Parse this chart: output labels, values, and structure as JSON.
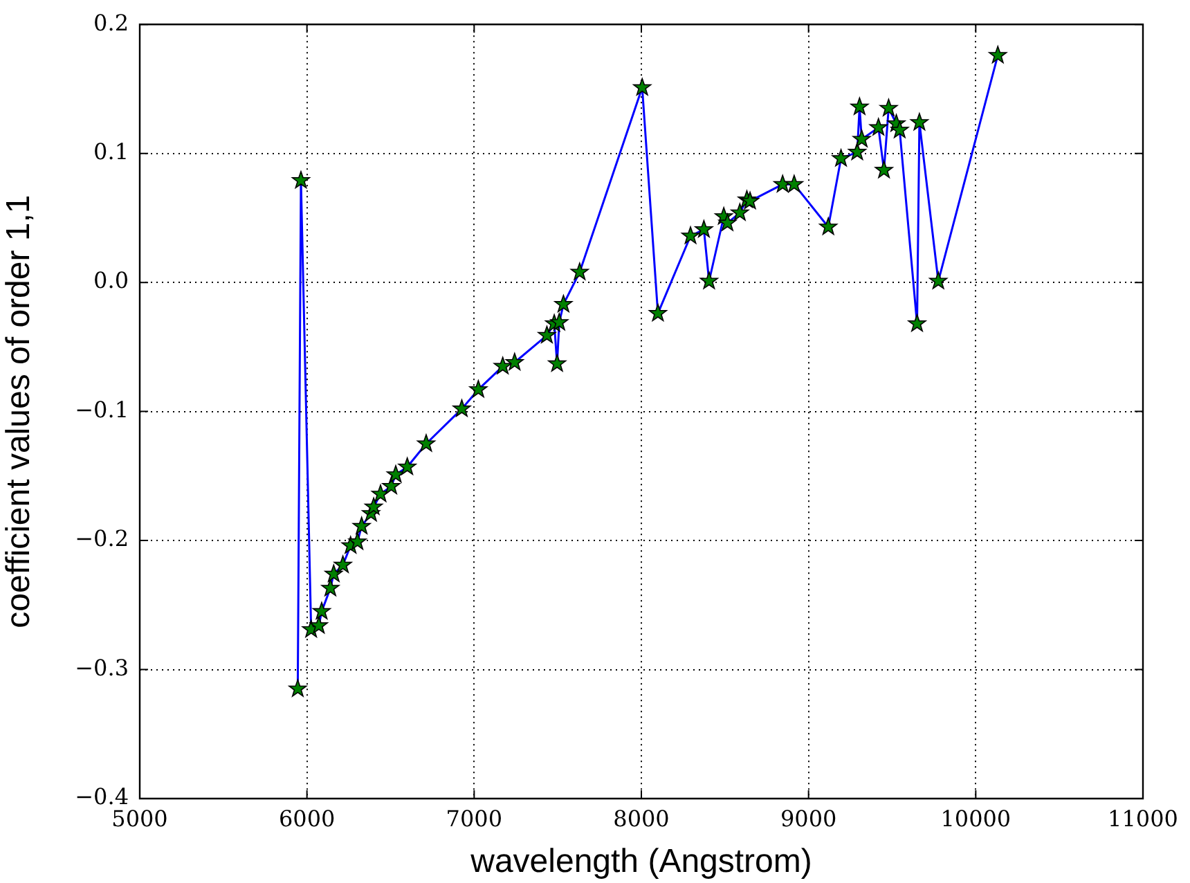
{
  "chart_data": {
    "type": "line",
    "xlabel": "wavelength (Angstrom)",
    "ylabel": "coefficient values of order 1,1",
    "x": [
      5945,
      5964,
      6025,
      6071,
      6088,
      6140,
      6160,
      6215,
      6261,
      6302,
      6327,
      6383,
      6399,
      6440,
      6504,
      6531,
      6600,
      6713,
      6926,
      7025,
      7171,
      7242,
      7435,
      7479,
      7496,
      7509,
      7534,
      7631,
      8005,
      8099,
      8294,
      8374,
      8405,
      8493,
      8515,
      8589,
      8631,
      8650,
      8845,
      8914,
      9118,
      9194,
      9291,
      9305,
      9318,
      9418,
      9451,
      9479,
      9525,
      9545,
      9649,
      9663,
      9776,
      10132
    ],
    "series": [
      {
        "color": "#0000ff",
        "values": [
          -0.315,
          0.079,
          -0.269,
          -0.266,
          -0.255,
          -0.237,
          -0.226,
          -0.219,
          -0.204,
          -0.201,
          -0.189,
          -0.179,
          -0.174,
          -0.164,
          -0.158,
          -0.149,
          -0.143,
          -0.125,
          -0.098,
          -0.083,
          -0.065,
          -0.062,
          -0.041,
          -0.032,
          -0.063,
          -0.031,
          -0.017,
          0.008,
          0.151,
          -0.024,
          0.036,
          0.041,
          0.001,
          0.051,
          0.046,
          0.054,
          0.064,
          0.063,
          0.076,
          0.076,
          0.043,
          0.096,
          0.101,
          0.136,
          0.111,
          0.12,
          0.087,
          0.135,
          0.123,
          0.118,
          -0.032,
          0.124,
          0.001,
          0.176
        ]
      }
    ],
    "xlim": [
      5000,
      11000
    ],
    "xticks": [
      5000,
      6000,
      7000,
      8000,
      9000,
      10000,
      11000
    ],
    "ylim": [
      -0.4,
      0.2
    ],
    "yticks": [
      {
        "value": -0.4,
        "label": "−0.4"
      },
      {
        "value": -0.3,
        "label": "−0.3"
      },
      {
        "value": -0.2,
        "label": "−0.2"
      },
      {
        "value": -0.1,
        "label": "−0.1"
      },
      {
        "value": 0,
        "label": "0.0"
      },
      0.1,
      0.2
    ],
    "grid": true,
    "legend": false,
    "marker": "star",
    "line_style": "solid"
  }
}
